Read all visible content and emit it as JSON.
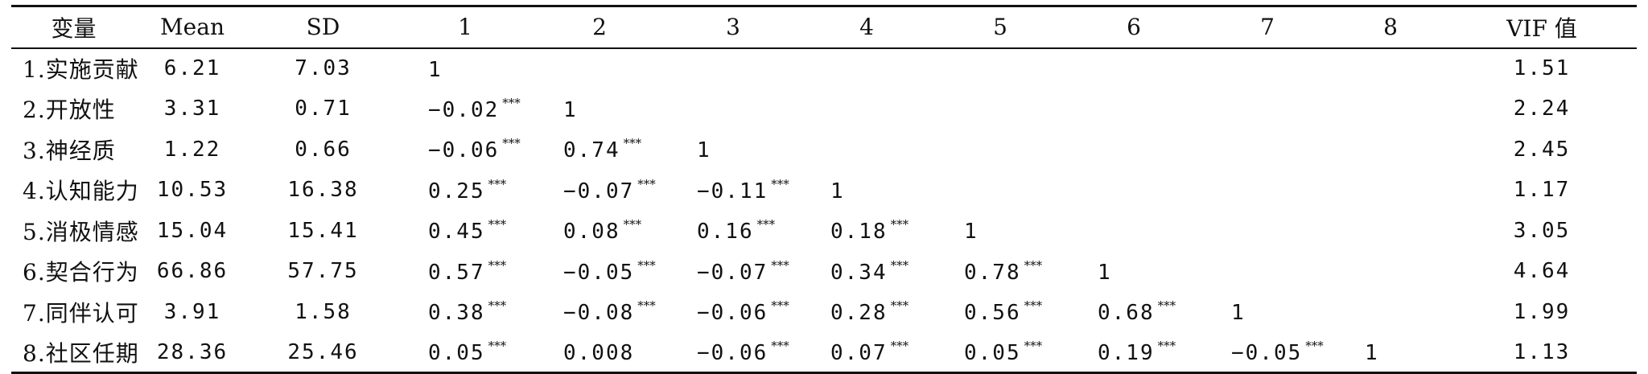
{
  "headers": [
    "变量",
    "Mean",
    "SD",
    "1",
    "2",
    "3",
    "4",
    "5",
    "6",
    "7",
    "8",
    "VIF 值"
  ],
  "rows": [
    {
      "label": "1.实施贡献",
      "mean": "6.21",
      "sd": "7.03",
      "c1": "1",
      "c1_sig": "",
      "c2": "",
      "c2_sig": "",
      "c3": "",
      "c3_sig": "",
      "c4": "",
      "c4_sig": "",
      "c5": "",
      "c5_sig": "",
      "c6": "",
      "c6_sig": "",
      "c7": "",
      "c7_sig": "",
      "c8": "",
      "c8_sig": "",
      "vif": "1.51"
    },
    {
      "label": "2.开放性",
      "mean": "3.31",
      "sd": "0.71",
      "c1": "−0.02",
      "c1_sig": "***",
      "c2": "1",
      "c2_sig": "",
      "c3": "",
      "c3_sig": "",
      "c4": "",
      "c4_sig": "",
      "c5": "",
      "c5_sig": "",
      "c6": "",
      "c6_sig": "",
      "c7": "",
      "c7_sig": "",
      "c8": "",
      "c8_sig": "",
      "vif": "2.24"
    },
    {
      "label": "3.神经质",
      "mean": "1.22",
      "sd": "0.66",
      "c1": "−0.06",
      "c1_sig": "***",
      "c2": "0.74",
      "c2_sig": "***",
      "c3": "1",
      "c3_sig": "",
      "c4": "",
      "c4_sig": "",
      "c5": "",
      "c5_sig": "",
      "c6": "",
      "c6_sig": "",
      "c7": "",
      "c7_sig": "",
      "c8": "",
      "c8_sig": "",
      "vif": "2.45"
    },
    {
      "label": "4.认知能力",
      "mean": "10.53",
      "sd": "16.38",
      "c1": "0.25",
      "c1_sig": "***",
      "c2": "−0.07",
      "c2_sig": "***",
      "c3": "−0.11",
      "c3_sig": "***",
      "c4": "1",
      "c4_sig": "",
      "c5": "",
      "c5_sig": "",
      "c6": "",
      "c6_sig": "",
      "c7": "",
      "c7_sig": "",
      "c8": "",
      "c8_sig": "",
      "vif": "1.17"
    },
    {
      "label": "5.消极情感",
      "mean": "15.04",
      "sd": "15.41",
      "c1": "0.45",
      "c1_sig": "***",
      "c2": "0.08",
      "c2_sig": "***",
      "c3": "0.16",
      "c3_sig": "***",
      "c4": "0.18",
      "c4_sig": "***",
      "c5": "1",
      "c5_sig": "",
      "c6": "",
      "c6_sig": "",
      "c7": "",
      "c7_sig": "",
      "c8": "",
      "c8_sig": "",
      "vif": "3.05"
    },
    {
      "label": "6.契合行为",
      "mean": "66.86",
      "sd": "57.75",
      "c1": "0.57",
      "c1_sig": "***",
      "c2": "−0.05",
      "c2_sig": "***",
      "c3": "−0.07",
      "c3_sig": "***",
      "c4": "0.34",
      "c4_sig": "***",
      "c5": "0.78",
      "c5_sig": "***",
      "c6": "1",
      "c6_sig": "",
      "c7": "",
      "c7_sig": "",
      "c8": "",
      "c8_sig": "",
      "vif": "4.64"
    },
    {
      "label": "7.同伴认可",
      "mean": "3.91",
      "sd": "1.58",
      "c1": "0.38",
      "c1_sig": "***",
      "c2": "−0.08",
      "c2_sig": "***",
      "c3": "−0.06",
      "c3_sig": "***",
      "c4": "0.28",
      "c4_sig": "***",
      "c5": "0.56",
      "c5_sig": "***",
      "c6": "0.68",
      "c6_sig": "***",
      "c7": "1",
      "c7_sig": "",
      "c8": "",
      "c8_sig": "",
      "vif": "1.99"
    },
    {
      "label": "8.社区任期",
      "mean": "28.36",
      "sd": "25.46",
      "c1": "0.05",
      "c1_sig": "***",
      "c2": "0.008",
      "c2_sig": "",
      "c3": "−0.06",
      "c3_sig": "***",
      "c4": "0.07",
      "c4_sig": "***",
      "c5": "0.05",
      "c5_sig": "***",
      "c6": "0.19",
      "c6_sig": "***",
      "c7": "−0.05",
      "c7_sig": "***",
      "c8": "1",
      "c8_sig": "",
      "vif": "1.13"
    }
  ]
}
